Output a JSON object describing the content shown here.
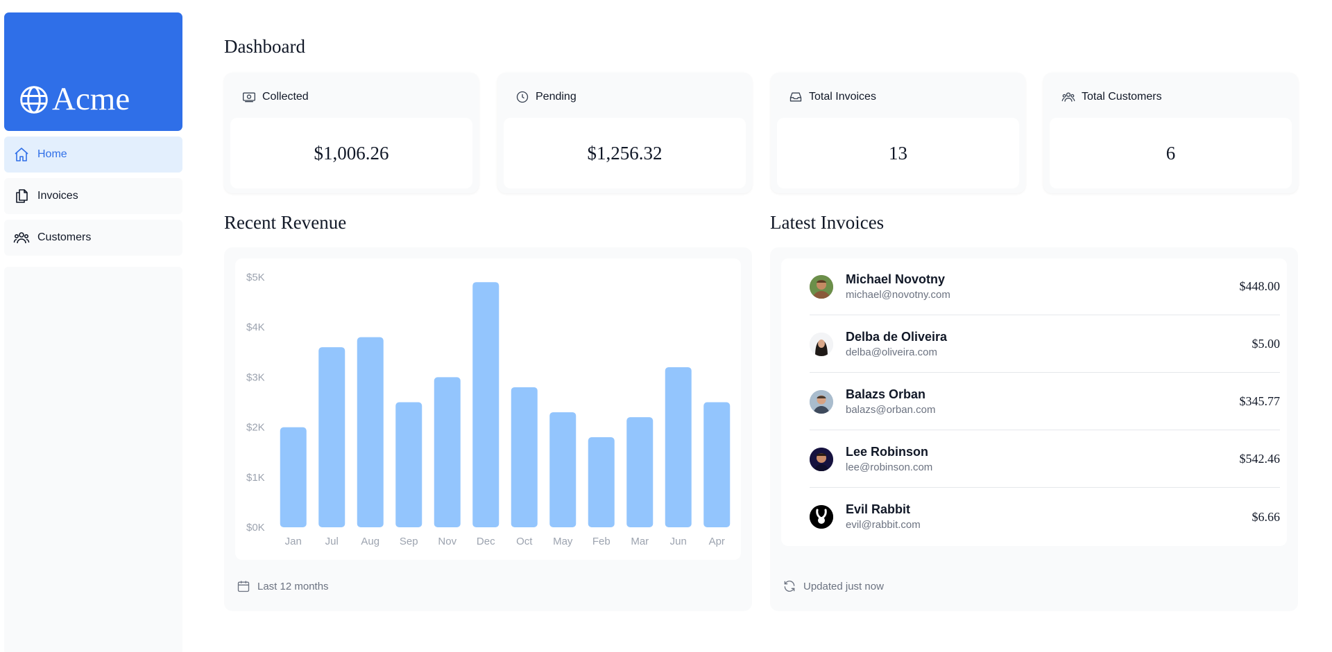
{
  "brand": {
    "name": "Acme",
    "color": "#2f6fe8",
    "icon": "globe-icon"
  },
  "nav": {
    "items": [
      {
        "label": "Home",
        "icon": "home-icon",
        "active": true
      },
      {
        "label": "Invoices",
        "icon": "documents-icon",
        "active": false
      },
      {
        "label": "Customers",
        "icon": "users-icon",
        "active": false
      }
    ]
  },
  "page": {
    "title": "Dashboard"
  },
  "cards": [
    {
      "title": "Collected",
      "value": "$1,006.26",
      "icon": "banknote-icon"
    },
    {
      "title": "Pending",
      "value": "$1,256.32",
      "icon": "clock-icon"
    },
    {
      "title": "Total Invoices",
      "value": "13",
      "icon": "inbox-icon"
    },
    {
      "title": "Total Customers",
      "value": "6",
      "icon": "users-icon"
    }
  ],
  "revenue": {
    "title": "Recent Revenue",
    "footer": "Last 12 months",
    "footer_icon": "calendar-icon"
  },
  "chart_data": {
    "type": "bar",
    "categories": [
      "Jan",
      "Jul",
      "Aug",
      "Sep",
      "Nov",
      "Dec",
      "Oct",
      "May",
      "Feb",
      "Mar",
      "Jun",
      "Apr"
    ],
    "values": [
      2000,
      3600,
      3800,
      2500,
      3000,
      4900,
      2800,
      2300,
      1800,
      2200,
      3200,
      2500
    ],
    "yticks": [
      "$0K",
      "$1K",
      "$2K",
      "$3K",
      "$4K",
      "$5K"
    ],
    "ylim": [
      0,
      5000
    ],
    "bar_color": "#93c5fd",
    "grid": false
  },
  "latest_invoices": {
    "title": "Latest Invoices",
    "footer": "Updated just now",
    "footer_icon": "refresh-icon",
    "items": [
      {
        "name": "Michael Novotny",
        "email": "michael@novotny.com",
        "amount": "$448.00",
        "avatar": "avatar-michael"
      },
      {
        "name": "Delba de Oliveira",
        "email": "delba@oliveira.com",
        "amount": "$5.00",
        "avatar": "avatar-delba"
      },
      {
        "name": "Balazs Orban",
        "email": "balazs@orban.com",
        "amount": "$345.77",
        "avatar": "avatar-balazs"
      },
      {
        "name": "Lee Robinson",
        "email": "lee@robinson.com",
        "amount": "$542.46",
        "avatar": "avatar-lee"
      },
      {
        "name": "Evil Rabbit",
        "email": "evil@rabbit.com",
        "amount": "$6.66",
        "avatar": "avatar-evil-rabbit"
      }
    ]
  }
}
